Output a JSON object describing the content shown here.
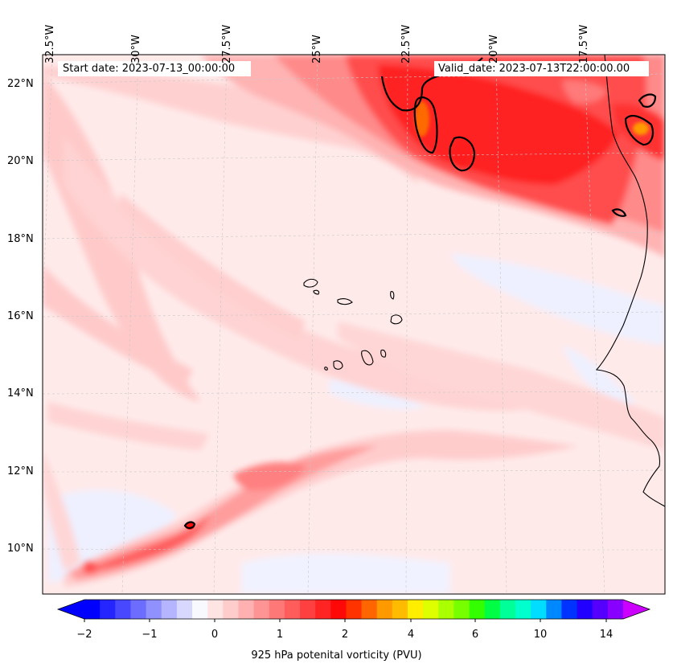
{
  "header": {
    "start_date": "Start date: 2023-07-13_00:00:00",
    "valid_date": "Valid_date: 2023-07-13T22:00:00.00"
  },
  "axes": {
    "lon_labels": [
      "32.5°W",
      "30°W",
      "27.5°W",
      "25°W",
      "22.5°W",
      "20°W",
      "17.5°W"
    ],
    "lat_labels": [
      "22°N",
      "20°N",
      "18°N",
      "16°N",
      "14°N",
      "12°N",
      "10°N"
    ]
  },
  "colorbar": {
    "label": "925 hPa potenital vorticity (PVU)",
    "ticks": [
      "−2",
      "−1",
      "0",
      "1",
      "2",
      "4",
      "6",
      "10",
      "14"
    ],
    "colors": [
      "#0000ff",
      "#2525ff",
      "#4848ff",
      "#6c6cff",
      "#9090ff",
      "#b4b4ff",
      "#d8d8ff",
      "#f8f8ff",
      "#ffe4e4",
      "#ffcccc",
      "#ffb0b0",
      "#ff9494",
      "#ff7878",
      "#ff5c5c",
      "#ff4040",
      "#ff2424",
      "#ff0808",
      "#ff3300",
      "#ff6600",
      "#ff9900",
      "#ffbb00",
      "#ffee00",
      "#ddff00",
      "#aaff00",
      "#77ff00",
      "#33ff00",
      "#00ff44",
      "#00ff99",
      "#00ffcc",
      "#00ddff",
      "#0088ff",
      "#0033ff",
      "#2200ff",
      "#5500ff",
      "#8800ff"
    ],
    "extend_low": "#0000ff",
    "extend_high": "#cc00ff"
  },
  "colors": {
    "background_field": "#ffeaea",
    "pv_low": "#ffd6d6",
    "pv_mid": "#ff9a9a",
    "pv_high": "#ff2a2a",
    "pv_peak": "#ff6a00",
    "negative": "#e6e9ff"
  }
}
